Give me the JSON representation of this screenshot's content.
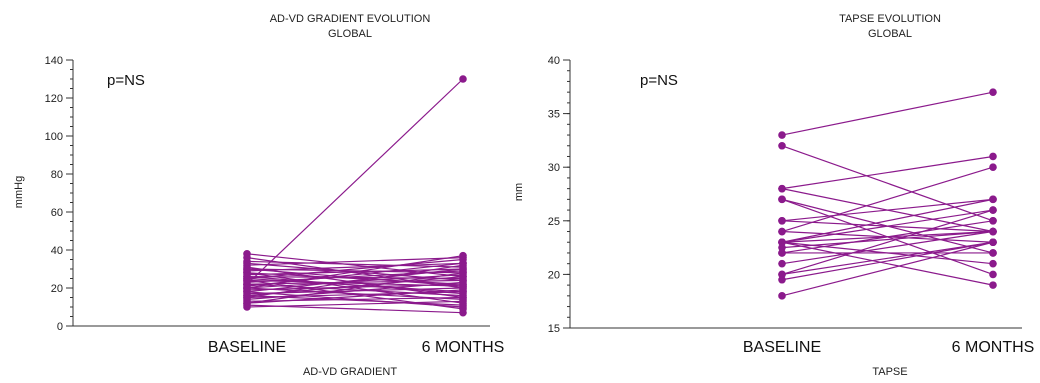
{
  "colors": {
    "series": "#8B1A8C",
    "axis": "#333333"
  },
  "chart_data": [
    {
      "type": "line",
      "title_line1": "AD-VD GRADIENT EVOLUTION",
      "title_line2": "GLOBAL",
      "xlabel": "AD-VD GRADIENT",
      "ylabel": "mmHg",
      "annotation": "p=NS",
      "categories": [
        "BASELINE",
        "6 MONTHS"
      ],
      "ylim": [
        0,
        140
      ],
      "yticks": [
        0,
        20,
        40,
        60,
        80,
        100,
        120,
        140
      ],
      "minor_step": 5,
      "grid": false,
      "pairs": [
        [
          22,
          130
        ],
        [
          38,
          26
        ],
        [
          36,
          20
        ],
        [
          34,
          31
        ],
        [
          33,
          24
        ],
        [
          32,
          36
        ],
        [
          31,
          15
        ],
        [
          30,
          28
        ],
        [
          29,
          33
        ],
        [
          28,
          22
        ],
        [
          28,
          12
        ],
        [
          27,
          30
        ],
        [
          26,
          25
        ],
        [
          25,
          18
        ],
        [
          25,
          35
        ],
        [
          24,
          21
        ],
        [
          23,
          29
        ],
        [
          22,
          16
        ],
        [
          22,
          24
        ],
        [
          21,
          33
        ],
        [
          20,
          14
        ],
        [
          20,
          27
        ],
        [
          19,
          22
        ],
        [
          18,
          30
        ],
        [
          18,
          10
        ],
        [
          17,
          20
        ],
        [
          16,
          26
        ],
        [
          15,
          18
        ],
        [
          15,
          32
        ],
        [
          14,
          23
        ],
        [
          13,
          15
        ],
        [
          12,
          19
        ],
        [
          12,
          28
        ],
        [
          11,
          7
        ],
        [
          10,
          13
        ],
        [
          26,
          17
        ],
        [
          24,
          9
        ],
        [
          20,
          37
        ],
        [
          16,
          11
        ],
        [
          30,
          21
        ]
      ]
    },
    {
      "type": "line",
      "title_line1": "TAPSE EVOLUTION",
      "title_line2": "GLOBAL",
      "xlabel": "TAPSE",
      "ylabel": "mm",
      "annotation": "p=NS",
      "categories": [
        "BASELINE",
        "6 MONTHS"
      ],
      "ylim": [
        15,
        40
      ],
      "yticks": [
        15,
        20,
        25,
        30,
        35,
        40
      ],
      "minor_step": 1,
      "grid": false,
      "pairs": [
        [
          33,
          37
        ],
        [
          32,
          25
        ],
        [
          28,
          31
        ],
        [
          28,
          24
        ],
        [
          27,
          20
        ],
        [
          27,
          22
        ],
        [
          25,
          27
        ],
        [
          25,
          24
        ],
        [
          24,
          30
        ],
        [
          24,
          23
        ],
        [
          23,
          26
        ],
        [
          23,
          27
        ],
        [
          23,
          24
        ],
        [
          23,
          21
        ],
        [
          23,
          19
        ],
        [
          22.5,
          24
        ],
        [
          22,
          25
        ],
        [
          22,
          22
        ],
        [
          21,
          24
        ],
        [
          20,
          26
        ],
        [
          20,
          23
        ],
        [
          19.5,
          23
        ],
        [
          18,
          23
        ]
      ]
    }
  ]
}
